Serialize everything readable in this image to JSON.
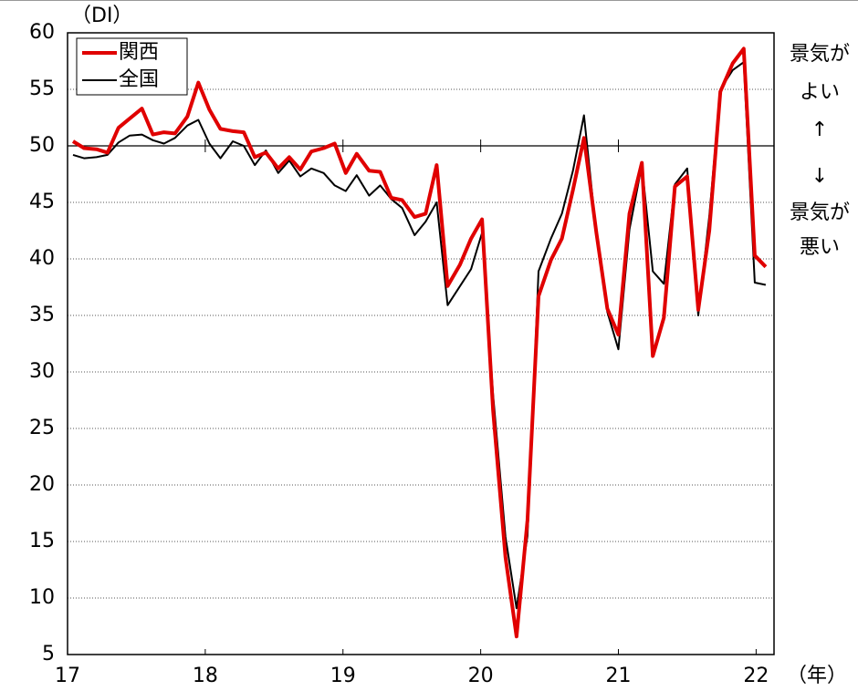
{
  "chart_data": {
    "type": "line",
    "y_axis_label": "（DI）",
    "x_axis_label": "（年）",
    "annotations": [
      "景気が",
      "よい",
      "↑",
      "↓",
      "景気が",
      "悪い"
    ],
    "x": [
      17.04,
      17.12,
      17.21,
      17.29,
      17.37,
      17.45,
      17.54,
      17.62,
      17.7,
      17.78,
      17.87,
      17.95,
      18.03,
      18.11,
      18.2,
      18.28,
      18.36,
      18.44,
      18.53,
      18.61,
      18.69,
      18.77,
      18.86,
      18.94,
      19.02,
      19.1,
      19.19,
      19.27,
      19.35,
      19.43,
      19.52,
      19.6,
      19.68,
      19.76,
      19.85,
      19.93,
      20.01,
      20.09,
      20.18,
      20.26,
      20.34,
      20.42,
      20.51,
      20.59,
      20.67,
      20.75,
      20.84,
      20.92,
      21.0,
      21.08,
      21.17,
      21.25,
      21.33,
      21.41,
      21.5,
      21.58,
      21.66,
      21.74,
      21.83,
      21.91,
      21.99,
      22.07
    ],
    "series": [
      {
        "name": "関西",
        "color": "#e00000",
        "width": 4,
        "values": [
          50.4,
          49.8,
          49.7,
          49.4,
          51.6,
          52.4,
          53.3,
          51.0,
          51.2,
          51.1,
          52.6,
          55.6,
          53.2,
          51.5,
          51.3,
          51.2,
          49.0,
          49.4,
          48.0,
          49.0,
          47.9,
          49.5,
          49.8,
          50.2,
          47.6,
          49.3,
          47.8,
          47.7,
          45.4,
          45.2,
          43.7,
          44.0,
          48.3,
          37.6,
          39.5,
          41.8,
          43.5,
          26.6,
          13.6,
          6.6,
          16.9,
          36.7,
          39.9,
          41.8,
          46.1,
          50.7,
          42.3,
          35.6,
          33.3,
          44.0,
          48.5,
          31.4,
          34.8,
          46.4,
          47.3,
          35.5,
          42.5,
          54.8,
          57.3,
          58.6,
          40.3,
          39.3
        ]
      },
      {
        "name": "全国",
        "color": "#000000",
        "width": 2,
        "values": [
          49.2,
          48.9,
          49.0,
          49.2,
          50.3,
          50.9,
          51.0,
          50.5,
          50.2,
          50.7,
          51.8,
          52.3,
          50.2,
          48.9,
          50.4,
          50.0,
          48.3,
          49.6,
          47.6,
          48.7,
          47.3,
          48.0,
          47.6,
          46.5,
          46.0,
          47.4,
          45.6,
          46.5,
          45.3,
          44.5,
          42.1,
          43.3,
          45.0,
          35.9,
          37.6,
          39.1,
          42.3,
          28.0,
          15.4,
          9.1,
          15.5,
          38.9,
          41.8,
          44.0,
          47.8,
          52.7,
          42.2,
          35.3,
          32.0,
          42.6,
          48.3,
          38.9,
          37.8,
          46.6,
          48.0,
          35.0,
          43.8,
          55.0,
          56.7,
          57.4,
          37.9,
          37.7
        ]
      }
    ],
    "xlim": [
      17,
      22.13
    ],
    "xticks": [
      17,
      18,
      19,
      20,
      21,
      22
    ],
    "ylim": [
      5,
      60
    ],
    "yticks": [
      5,
      10,
      15,
      20,
      25,
      30,
      35,
      40,
      45,
      50,
      55,
      60
    ],
    "grid": true,
    "hline": 50,
    "legend": "upper left"
  }
}
